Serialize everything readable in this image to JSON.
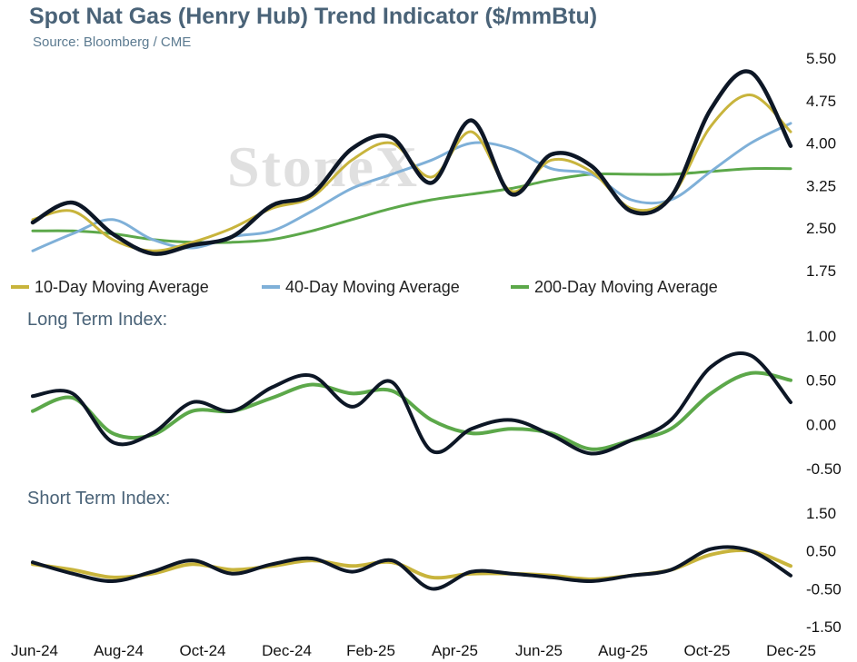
{
  "title": "Spot Nat Gas (Henry Hub) Trend Indicator ($/mmBtu)",
  "subtitle": "Source: Bloomberg / CME",
  "watermark": "StoneX",
  "x_tick_labels": [
    "Jun-24",
    "Aug-24",
    "Oct-24",
    "Dec-24",
    "Feb-25",
    "Apr-25",
    "Jun-25",
    "Aug-25",
    "Oct-25",
    "Dec-25"
  ],
  "colors": {
    "price": "#0d1726",
    "ma10": "#c8b43c",
    "ma40": "#7fb0d8",
    "ma200": "#5ca84a",
    "long_avg": "#5ca84a",
    "short_avg": "#c8b43c",
    "title": "#4a6378"
  },
  "chart_data": [
    {
      "type": "line",
      "panel": "price",
      "title": "Spot Nat Gas (Henry Hub) Trend Indicator ($/mmBtu)",
      "ylim": [
        1.75,
        5.5
      ],
      "y_ticks": [
        "5.50",
        "4.75",
        "4.00",
        "3.25",
        "2.50",
        "1.75"
      ],
      "x": [
        "Jun-24",
        "Jul-24",
        "Aug-24",
        "Sep-24",
        "Oct-24",
        "Nov-24",
        "Dec-24",
        "Jan-25",
        "Feb-25",
        "Mar-25",
        "Apr-25",
        "May-25",
        "Jun-25",
        "Jul-25",
        "Aug-25",
        "Sep-25",
        "Oct-25",
        "Nov-25",
        "Dec-25",
        "Jan-26"
      ],
      "legend_position": "bottom",
      "series": [
        {
          "name": "",
          "role": "price",
          "values": [
            2.6,
            2.95,
            2.4,
            2.05,
            2.2,
            2.35,
            2.9,
            3.1,
            3.9,
            4.1,
            3.3,
            4.4,
            3.1,
            3.8,
            3.6,
            2.8,
            3.05,
            4.6,
            5.25,
            3.95
          ]
        },
        {
          "name": "10-Day Moving Average",
          "values": [
            2.65,
            2.8,
            2.3,
            2.1,
            2.25,
            2.5,
            2.85,
            3.05,
            3.7,
            4.0,
            3.4,
            4.2,
            3.15,
            3.7,
            3.5,
            2.85,
            3.05,
            4.3,
            4.85,
            4.2
          ]
        },
        {
          "name": "40-Day Moving Average",
          "values": [
            2.1,
            2.4,
            2.65,
            2.3,
            2.15,
            2.35,
            2.45,
            2.8,
            3.2,
            3.45,
            3.7,
            4.0,
            3.9,
            3.55,
            3.45,
            3.0,
            3.0,
            3.5,
            4.0,
            4.35
          ]
        },
        {
          "name": "200-Day Moving Average",
          "values": [
            2.45,
            2.45,
            2.4,
            2.3,
            2.25,
            2.25,
            2.3,
            2.45,
            2.65,
            2.85,
            3.0,
            3.1,
            3.2,
            3.35,
            3.45,
            3.45,
            3.45,
            3.5,
            3.55,
            3.55
          ]
        }
      ]
    },
    {
      "type": "line",
      "panel": "long",
      "title": "Long Term Index:",
      "ylim": [
        -0.5,
        1.0
      ],
      "y_ticks": [
        "1.00",
        "0.50",
        "0.00",
        "-0.50"
      ],
      "x": [
        "Jun-24",
        "Jul-24",
        "Aug-24",
        "Sep-24",
        "Oct-24",
        "Nov-24",
        "Dec-24",
        "Jan-25",
        "Feb-25",
        "Mar-25",
        "Apr-25",
        "May-25",
        "Jun-25",
        "Jul-25",
        "Aug-25",
        "Sep-25",
        "Oct-25",
        "Nov-25",
        "Dec-25",
        "Jan-26"
      ],
      "series": [
        {
          "name": "",
          "values": [
            0.32,
            0.35,
            -0.2,
            -0.1,
            0.25,
            0.15,
            0.42,
            0.55,
            0.2,
            0.48,
            -0.3,
            -0.05,
            0.05,
            -0.12,
            -0.33,
            -0.18,
            0.05,
            0.65,
            0.78,
            0.25
          ]
        },
        {
          "name": "",
          "values": [
            0.15,
            0.3,
            -0.1,
            -0.12,
            0.15,
            0.15,
            0.3,
            0.45,
            0.35,
            0.38,
            0.05,
            -0.1,
            -0.05,
            -0.1,
            -0.28,
            -0.18,
            -0.05,
            0.35,
            0.58,
            0.5
          ]
        }
      ]
    },
    {
      "type": "line",
      "panel": "short",
      "title": "Short Term Index:",
      "ylim": [
        -1.5,
        1.5
      ],
      "y_ticks": [
        "1.50",
        "0.50",
        "-0.50",
        "-1.50"
      ],
      "x": [
        "Jun-24",
        "Jul-24",
        "Aug-24",
        "Sep-24",
        "Oct-24",
        "Nov-24",
        "Dec-24",
        "Jan-25",
        "Feb-25",
        "Mar-25",
        "Apr-25",
        "May-25",
        "Jun-25",
        "Jul-25",
        "Aug-25",
        "Sep-25",
        "Oct-25",
        "Nov-25",
        "Dec-25",
        "Jan-26"
      ],
      "series": [
        {
          "name": "",
          "values": [
            0.2,
            -0.1,
            -0.3,
            -0.05,
            0.25,
            -0.1,
            0.15,
            0.3,
            -0.05,
            0.25,
            -0.5,
            -0.05,
            -0.1,
            -0.2,
            -0.3,
            -0.15,
            0.0,
            0.55,
            0.5,
            -0.15
          ]
        },
        {
          "name": "",
          "values": [
            0.15,
            0.0,
            -0.2,
            -0.1,
            0.15,
            0.0,
            0.1,
            0.25,
            0.1,
            0.2,
            -0.2,
            -0.1,
            -0.1,
            -0.15,
            -0.25,
            -0.15,
            0.0,
            0.4,
            0.5,
            0.1
          ]
        }
      ]
    }
  ]
}
